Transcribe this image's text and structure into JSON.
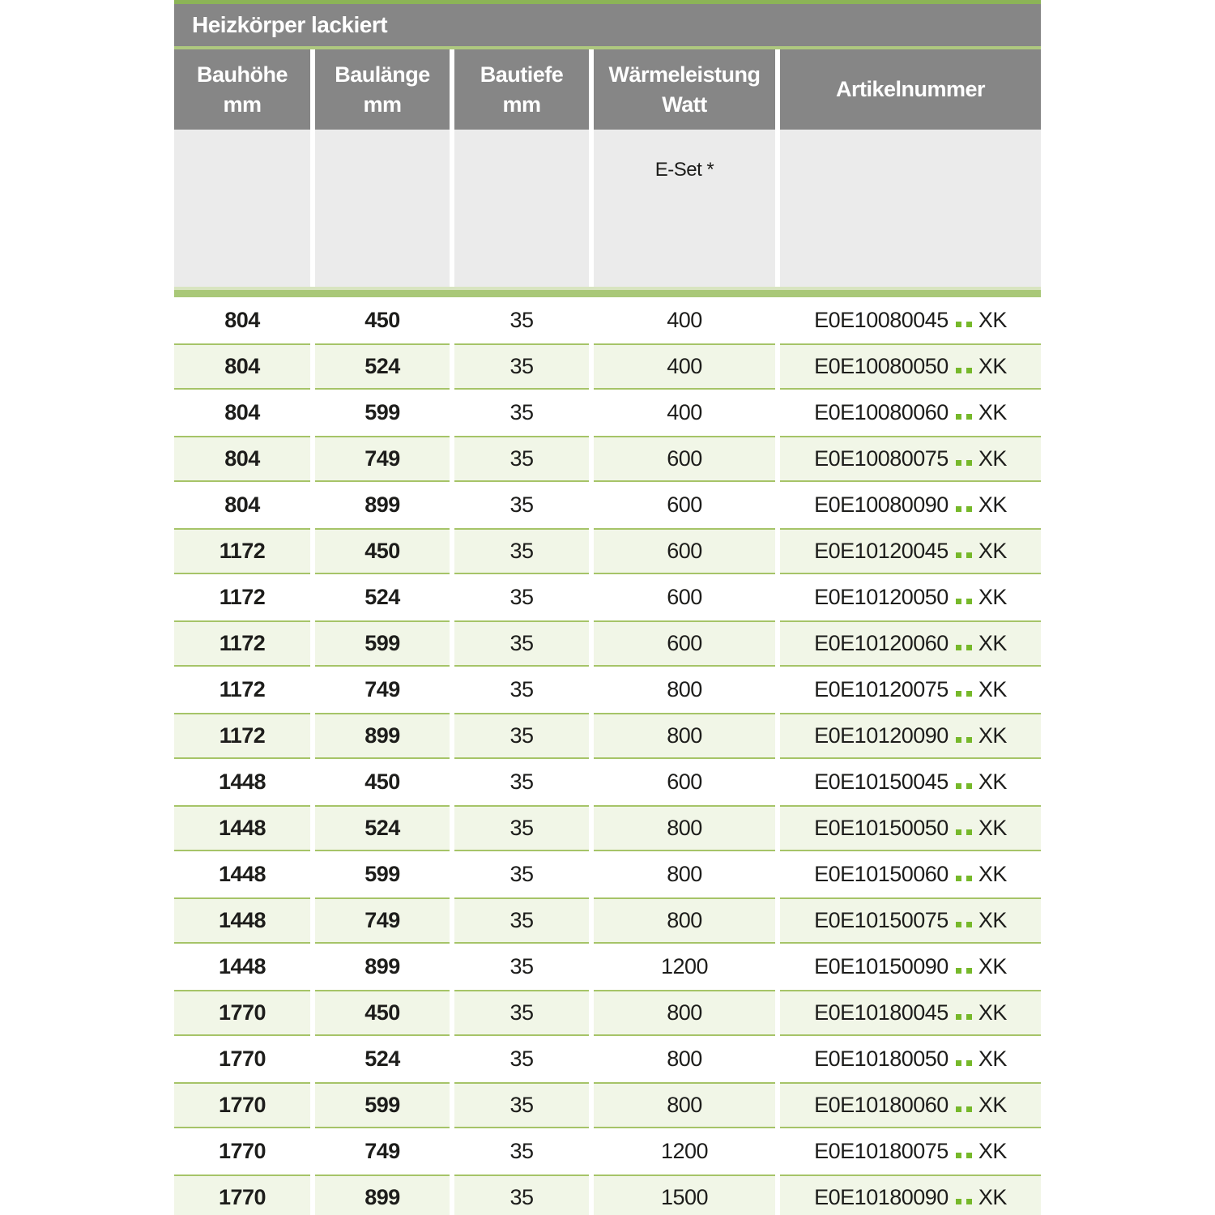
{
  "table": {
    "title": "Heizkörper lackiert",
    "columns": [
      {
        "label": "Bauhöhe",
        "unit": "mm"
      },
      {
        "label": "Baulänge",
        "unit": "mm"
      },
      {
        "label": "Bautiefe",
        "unit": "mm"
      },
      {
        "label": "Wärmeleistung",
        "unit": "Watt"
      },
      {
        "label": "Artikelnummer",
        "unit": ""
      }
    ],
    "subheader": {
      "eset_label": "E-Set *"
    },
    "article_suffix": "XK",
    "rows": [
      {
        "bauhoehe": "804",
        "baulaenge": "450",
        "bautiefe": "35",
        "watt": "400",
        "artikel": "E0E10080045",
        "suffix": "XK"
      },
      {
        "bauhoehe": "804",
        "baulaenge": "524",
        "bautiefe": "35",
        "watt": "400",
        "artikel": "E0E10080050",
        "suffix": "XK"
      },
      {
        "bauhoehe": "804",
        "baulaenge": "599",
        "bautiefe": "35",
        "watt": "400",
        "artikel": "E0E10080060",
        "suffix": "XK"
      },
      {
        "bauhoehe": "804",
        "baulaenge": "749",
        "bautiefe": "35",
        "watt": "600",
        "artikel": "E0E10080075",
        "suffix": "XK"
      },
      {
        "bauhoehe": "804",
        "baulaenge": "899",
        "bautiefe": "35",
        "watt": "600",
        "artikel": "E0E10080090",
        "suffix": "XK"
      },
      {
        "bauhoehe": "1172",
        "baulaenge": "450",
        "bautiefe": "35",
        "watt": "600",
        "artikel": "E0E10120045",
        "suffix": "XK"
      },
      {
        "bauhoehe": "1172",
        "baulaenge": "524",
        "bautiefe": "35",
        "watt": "600",
        "artikel": "E0E10120050",
        "suffix": "XK"
      },
      {
        "bauhoehe": "1172",
        "baulaenge": "599",
        "bautiefe": "35",
        "watt": "600",
        "artikel": "E0E10120060",
        "suffix": "XK"
      },
      {
        "bauhoehe": "1172",
        "baulaenge": "749",
        "bautiefe": "35",
        "watt": "800",
        "artikel": "E0E10120075",
        "suffix": "XK"
      },
      {
        "bauhoehe": "1172",
        "baulaenge": "899",
        "bautiefe": "35",
        "watt": "800",
        "artikel": "E0E10120090",
        "suffix": "XK"
      },
      {
        "bauhoehe": "1448",
        "baulaenge": "450",
        "bautiefe": "35",
        "watt": "600",
        "artikel": "E0E10150045",
        "suffix": "XK"
      },
      {
        "bauhoehe": "1448",
        "baulaenge": "524",
        "bautiefe": "35",
        "watt": "800",
        "artikel": "E0E10150050",
        "suffix": "XK"
      },
      {
        "bauhoehe": "1448",
        "baulaenge": "599",
        "bautiefe": "35",
        "watt": "800",
        "artikel": "E0E10150060",
        "suffix": "XK"
      },
      {
        "bauhoehe": "1448",
        "baulaenge": "749",
        "bautiefe": "35",
        "watt": "800",
        "artikel": "E0E10150075",
        "suffix": "XK"
      },
      {
        "bauhoehe": "1448",
        "baulaenge": "899",
        "bautiefe": "35",
        "watt": "1200",
        "artikel": "E0E10150090",
        "suffix": "XK"
      },
      {
        "bauhoehe": "1770",
        "baulaenge": "450",
        "bautiefe": "35",
        "watt": "800",
        "artikel": "E0E10180045",
        "suffix": "XK"
      },
      {
        "bauhoehe": "1770",
        "baulaenge": "524",
        "bautiefe": "35",
        "watt": "800",
        "artikel": "E0E10180050",
        "suffix": "XK"
      },
      {
        "bauhoehe": "1770",
        "baulaenge": "599",
        "bautiefe": "35",
        "watt": "800",
        "artikel": "E0E10180060",
        "suffix": "XK"
      },
      {
        "bauhoehe": "1770",
        "baulaenge": "749",
        "bautiefe": "35",
        "watt": "1200",
        "artikel": "E0E10180075",
        "suffix": "XK"
      },
      {
        "bauhoehe": "1770",
        "baulaenge": "899",
        "bautiefe": "35",
        "watt": "1500",
        "artikel": "E0E10180090",
        "suffix": "XK"
      }
    ],
    "colors": {
      "header_gray": "#868686",
      "header_text": "#ffffff",
      "top_strip_green": "#8cb457",
      "title_separator_green": "#aec87f",
      "subheader_gray": "#ebebeb",
      "double_bar_light": "#d8e4c0",
      "double_bar_dark": "#a9c878",
      "green_row_bg": "#f1f6e7",
      "green_row_border": "#a6c468",
      "dot_green": "#76b82a",
      "body_text": "#1d1d1b"
    }
  }
}
